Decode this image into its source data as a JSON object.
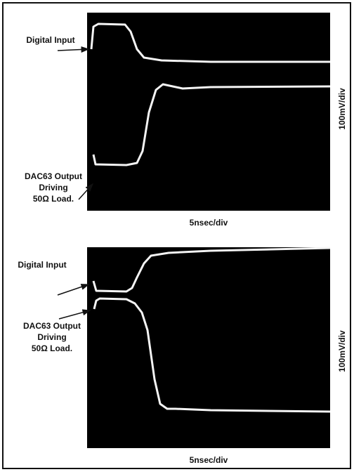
{
  "figures": [
    {
      "input_label": "Digital Input",
      "output_label": [
        "DAC63 Output",
        "Driving",
        "50Ω Load."
      ],
      "x_scale": "5nsec/div",
      "y_scale": "100mV/div"
    },
    {
      "input_label": "Digital Input",
      "output_label": [
        "DAC63 Output",
        "Driving",
        "50Ω Load."
      ],
      "x_scale": "5nsec/div",
      "y_scale": "100mV/div"
    }
  ]
}
